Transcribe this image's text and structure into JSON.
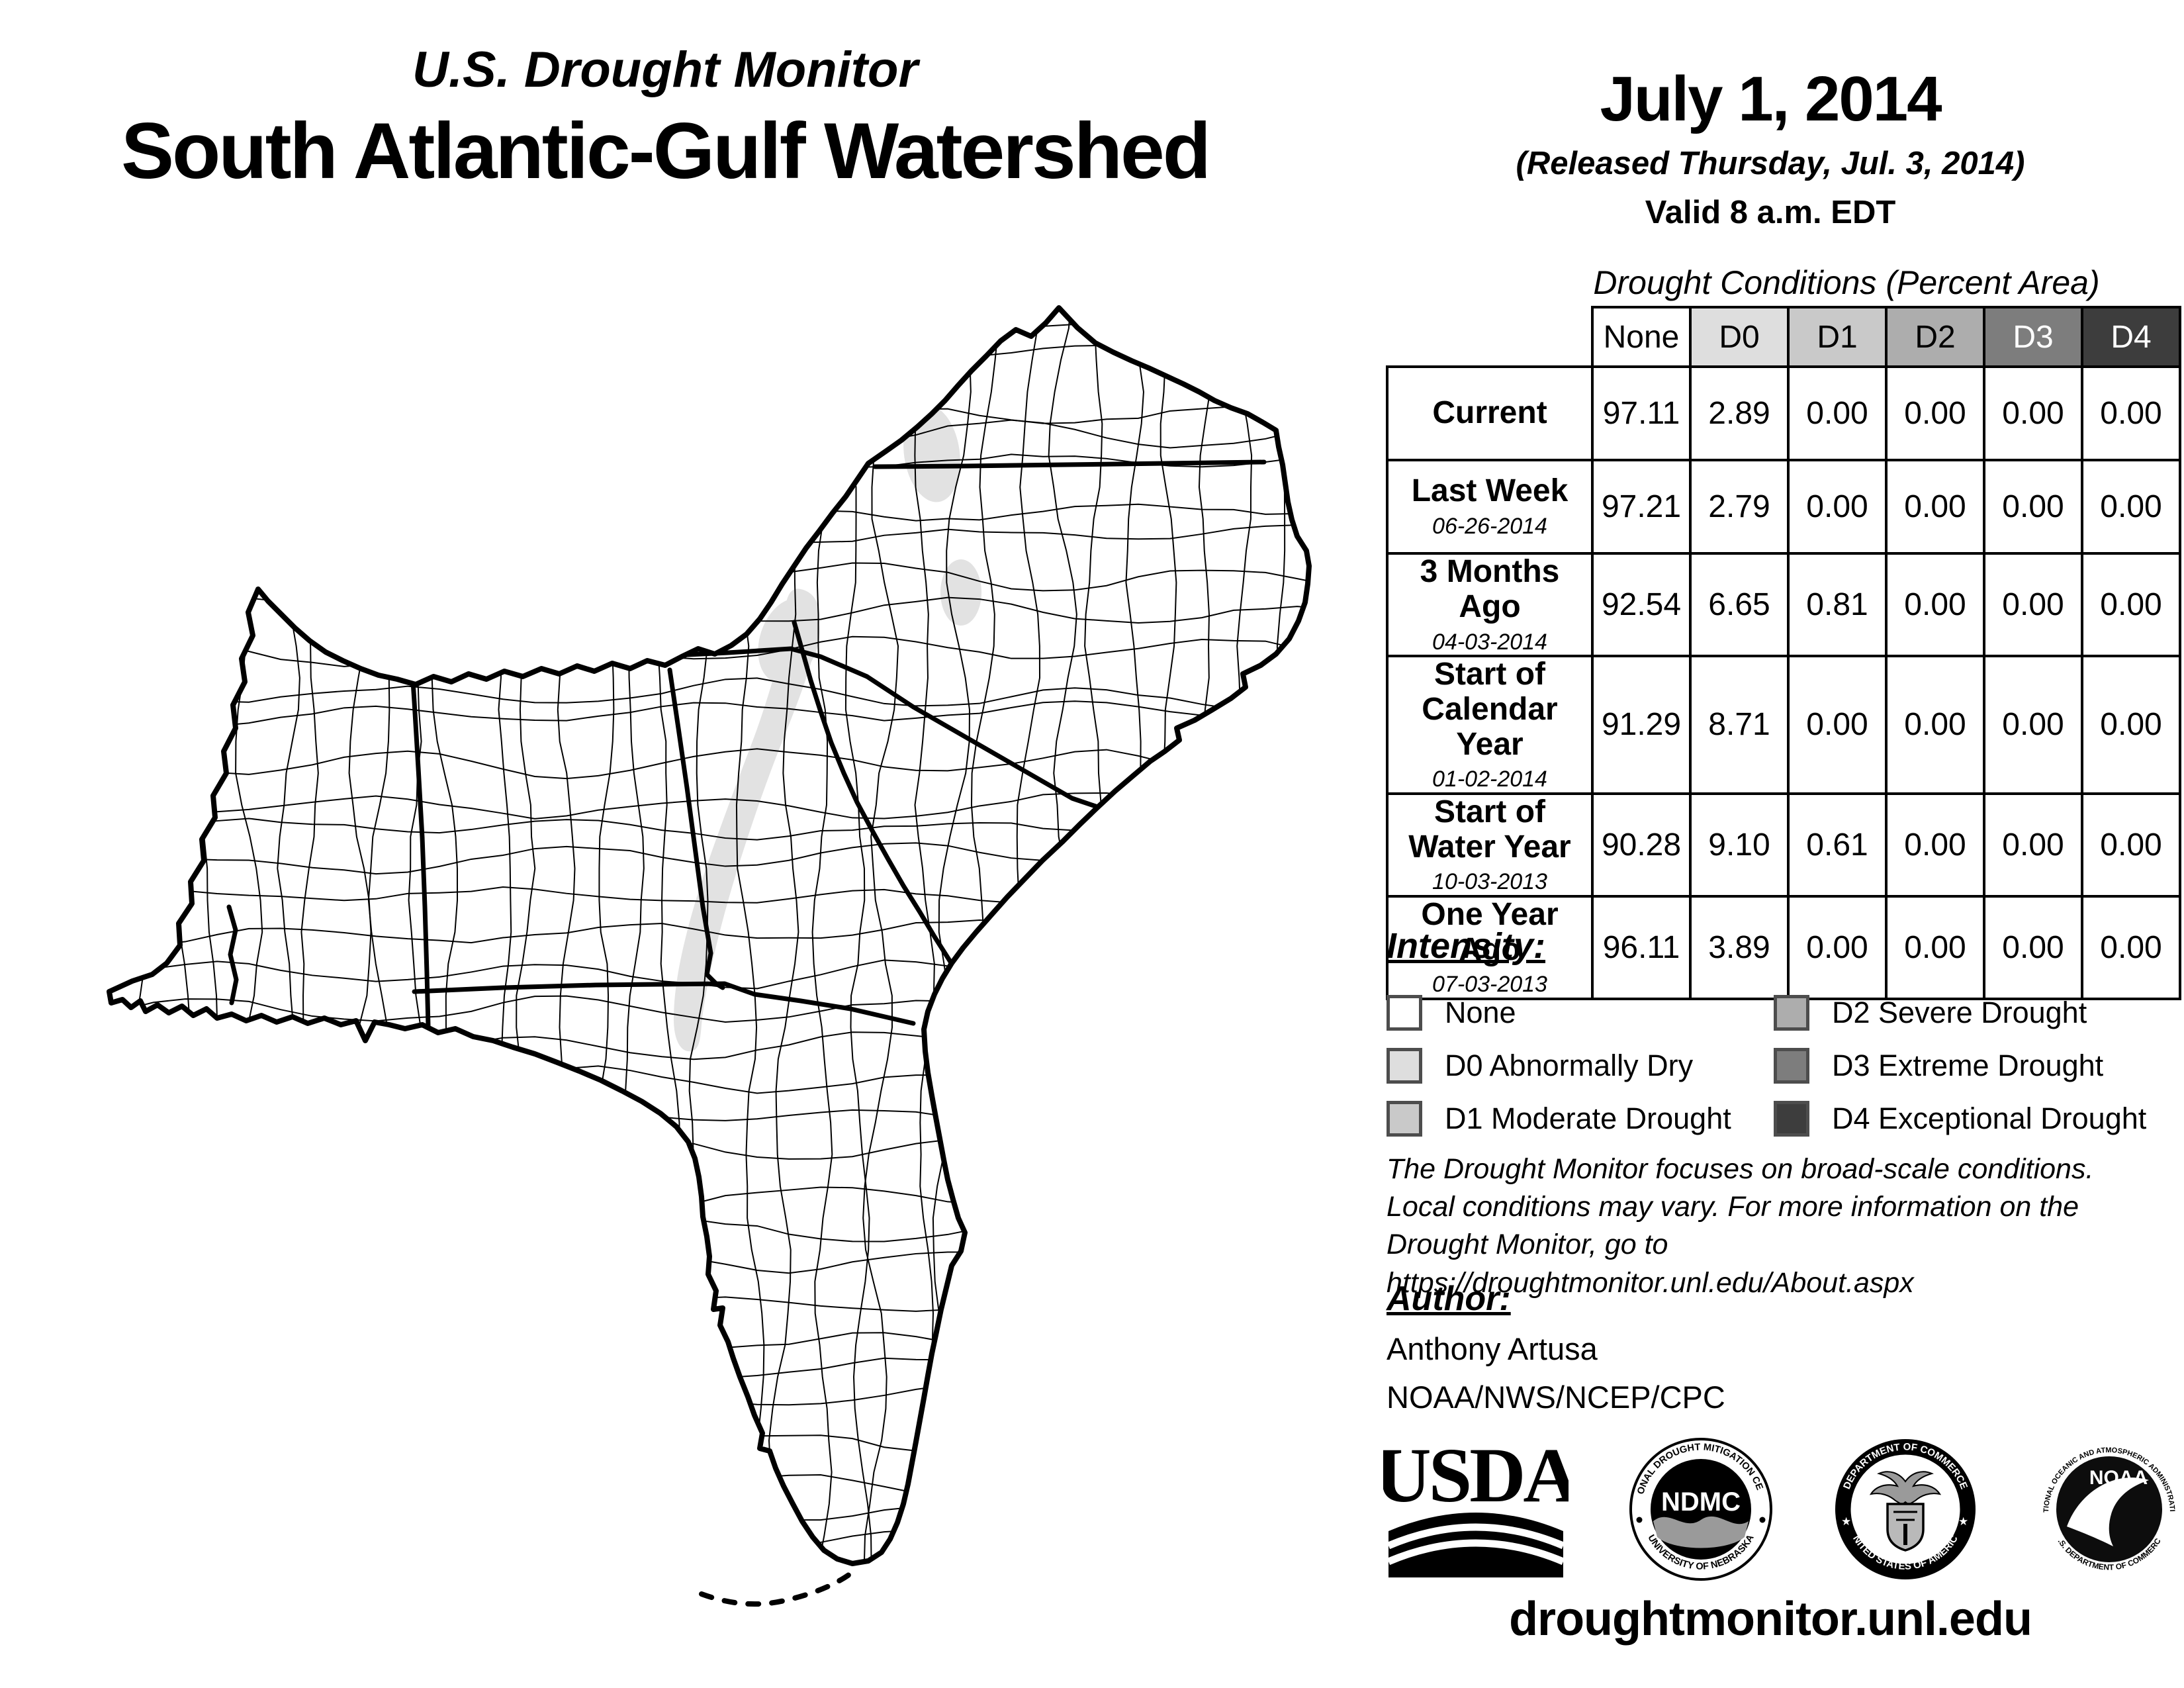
{
  "header": {
    "monitor_title": "U.S. Drought Monitor",
    "region_title": "South Atlantic-Gulf Watershed",
    "date": "July 1, 2014",
    "released": "(Released Thursday, Jul. 3, 2014)",
    "valid": "Valid 8 a.m. EDT"
  },
  "table": {
    "title": "Drought Conditions (Percent Area)",
    "columns": [
      "None",
      "D0",
      "D1",
      "D2",
      "D3",
      "D4"
    ],
    "column_colors": [
      "#ffffff",
      "#dedede",
      "#c9c9c9",
      "#adadad",
      "#7d7d7d",
      "#3d3d3d"
    ],
    "column_text_colors": [
      "#000000",
      "#000000",
      "#000000",
      "#000000",
      "#ffffff",
      "#ffffff"
    ],
    "rows": [
      {
        "label": "Current",
        "date": "",
        "values": [
          "97.11",
          "2.89",
          "0.00",
          "0.00",
          "0.00",
          "0.00"
        ]
      },
      {
        "label": "Last Week",
        "date": "06-26-2014",
        "values": [
          "97.21",
          "2.79",
          "0.00",
          "0.00",
          "0.00",
          "0.00"
        ]
      },
      {
        "label": "3 Months Ago",
        "date": "04-03-2014",
        "values": [
          "92.54",
          "6.65",
          "0.81",
          "0.00",
          "0.00",
          "0.00"
        ]
      },
      {
        "label": "Start of Calendar Year",
        "date": "01-02-2014",
        "values": [
          "91.29",
          "8.71",
          "0.00",
          "0.00",
          "0.00",
          "0.00"
        ]
      },
      {
        "label": "Start of Water Year",
        "date": "10-03-2013",
        "values": [
          "90.28",
          "9.10",
          "0.61",
          "0.00",
          "0.00",
          "0.00"
        ]
      },
      {
        "label": "One Year Ago",
        "date": "07-03-2013",
        "values": [
          "96.11",
          "3.89",
          "0.00",
          "0.00",
          "0.00",
          "0.00"
        ]
      }
    ]
  },
  "legend": {
    "title": "Intensity:",
    "items": [
      {
        "label": "None",
        "color": "#ffffff"
      },
      {
        "label": "D0 Abnormally Dry",
        "color": "#dedede"
      },
      {
        "label": "D1 Moderate Drought",
        "color": "#c9c9c9"
      },
      {
        "label": "D2 Severe Drought",
        "color": "#adadad"
      },
      {
        "label": "D3 Extreme Drought",
        "color": "#7d7d7d"
      },
      {
        "label": "D4 Exceptional Drought",
        "color": "#3d3d3d"
      }
    ]
  },
  "disclaimer": {
    "lines": [
      "The Drought Monitor focuses on broad-scale conditions.",
      "Local conditions may vary. For more information on the",
      "Drought Monitor, go to https://droughtmonitor.unl.edu/About.aspx"
    ]
  },
  "author": {
    "title": "Author:",
    "name": "Anthony Artusa",
    "org": "NOAA/NWS/NCEP/CPC"
  },
  "logos": {
    "usda": {
      "label": "USDA"
    },
    "ndmc": {
      "label": "NDMC",
      "top": "NATIONAL DROUGHT MITIGATION CENTER",
      "bottom": "UNIVERSITY OF NEBRASKA"
    },
    "doc": {
      "top": "DEPARTMENT OF COMMERCE",
      "bottom": "UNITED STATES OF AMERICA"
    },
    "noaa": {
      "label": "NOAA",
      "top": "NATIONAL OCEANIC AND ATMOSPHERIC ADMINISTRATION",
      "bottom": "U.S. DEPARTMENT OF COMMERCE"
    }
  },
  "footer": {
    "url": "droughtmonitor.unl.edu"
  },
  "map": {
    "description": "County-level map of the South Atlantic-Gulf watershed with D0 (abnormally dry) shading",
    "d0_color": "#e2e2e2"
  }
}
